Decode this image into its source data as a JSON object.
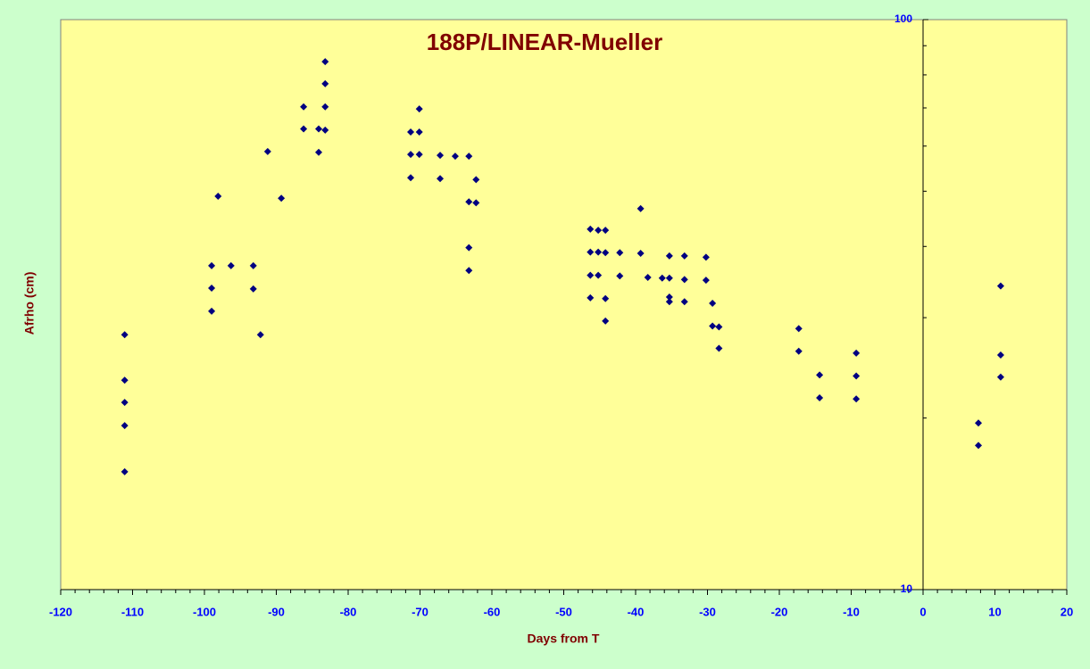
{
  "chart_data": {
    "type": "scatter",
    "title": "188P/LINEAR-Mueller",
    "xlabel": "Days from T",
    "ylabel": "Afrho (cm)",
    "xlim": [
      -120,
      20
    ],
    "xticks": [
      -120,
      -110,
      -100,
      -90,
      -80,
      -70,
      -60,
      -50,
      -40,
      -30,
      -20,
      -10,
      0,
      10,
      20
    ],
    "ylim": [
      10,
      100
    ],
    "yticks": [
      10,
      100
    ],
    "yminorticks": [
      20,
      30,
      40,
      50,
      60,
      70,
      80,
      90
    ],
    "log_y": true,
    "grid": false,
    "series": [
      {
        "name": "Afrho",
        "color": "#000080",
        "x": [
          -111.1,
          -111.1,
          -111.1,
          -111.1,
          -111.1,
          -99.0,
          -99.0,
          -99.0,
          -98.1,
          -96.3,
          -93.2,
          -93.2,
          -92.2,
          -91.2,
          -89.3,
          -86.2,
          -86.2,
          -84.1,
          -84.1,
          -83.2,
          -83.2,
          -83.2,
          -83.2,
          -71.3,
          -71.3,
          -71.3,
          -70.1,
          -70.1,
          -70.1,
          -67.2,
          -67.2,
          -65.1,
          -63.2,
          -63.2,
          -63.2,
          -63.2,
          -62.2,
          -62.2,
          -46.3,
          -46.3,
          -46.3,
          -46.3,
          -45.2,
          -45.2,
          -45.2,
          -44.2,
          -44.2,
          -44.2,
          -44.2,
          -42.2,
          -42.2,
          -39.3,
          -39.3,
          -38.3,
          -36.3,
          -35.3,
          -35.3,
          -35.3,
          -35.3,
          -33.2,
          -33.2,
          -33.2,
          -30.2,
          -30.2,
          -29.3,
          -29.3,
          -28.4,
          -28.4,
          -17.3,
          -17.3,
          -14.4,
          -14.4,
          -9.3,
          -9.3,
          -9.3,
          7.7,
          7.7,
          10.8,
          10.8,
          10.8
        ],
        "values": [
          28.0,
          23.3,
          21.3,
          19.4,
          16.1,
          37.0,
          33.8,
          30.8,
          49.0,
          37.0,
          37.0,
          33.7,
          28.0,
          58.7,
          48.6,
          70.3,
          64.3,
          64.3,
          58.5,
          84.4,
          77.2,
          70.3,
          64.0,
          63.5,
          58.0,
          52.8,
          69.7,
          63.5,
          58.0,
          57.8,
          52.6,
          57.6,
          57.6,
          47.9,
          39.8,
          36.3,
          52.4,
          47.7,
          42.9,
          39.1,
          35.6,
          32.5,
          42.7,
          39.1,
          35.6,
          42.7,
          39.0,
          32.4,
          29.6,
          39.0,
          35.5,
          46.6,
          38.9,
          35.3,
          35.2,
          38.5,
          35.2,
          32.6,
          32.0,
          38.5,
          35.0,
          32.0,
          38.3,
          34.9,
          31.8,
          29.0,
          28.9,
          26.5,
          28.7,
          26.2,
          23.8,
          21.7,
          26.0,
          23.7,
          21.6,
          19.6,
          17.9,
          34.1,
          25.8,
          23.6
        ]
      }
    ]
  }
}
